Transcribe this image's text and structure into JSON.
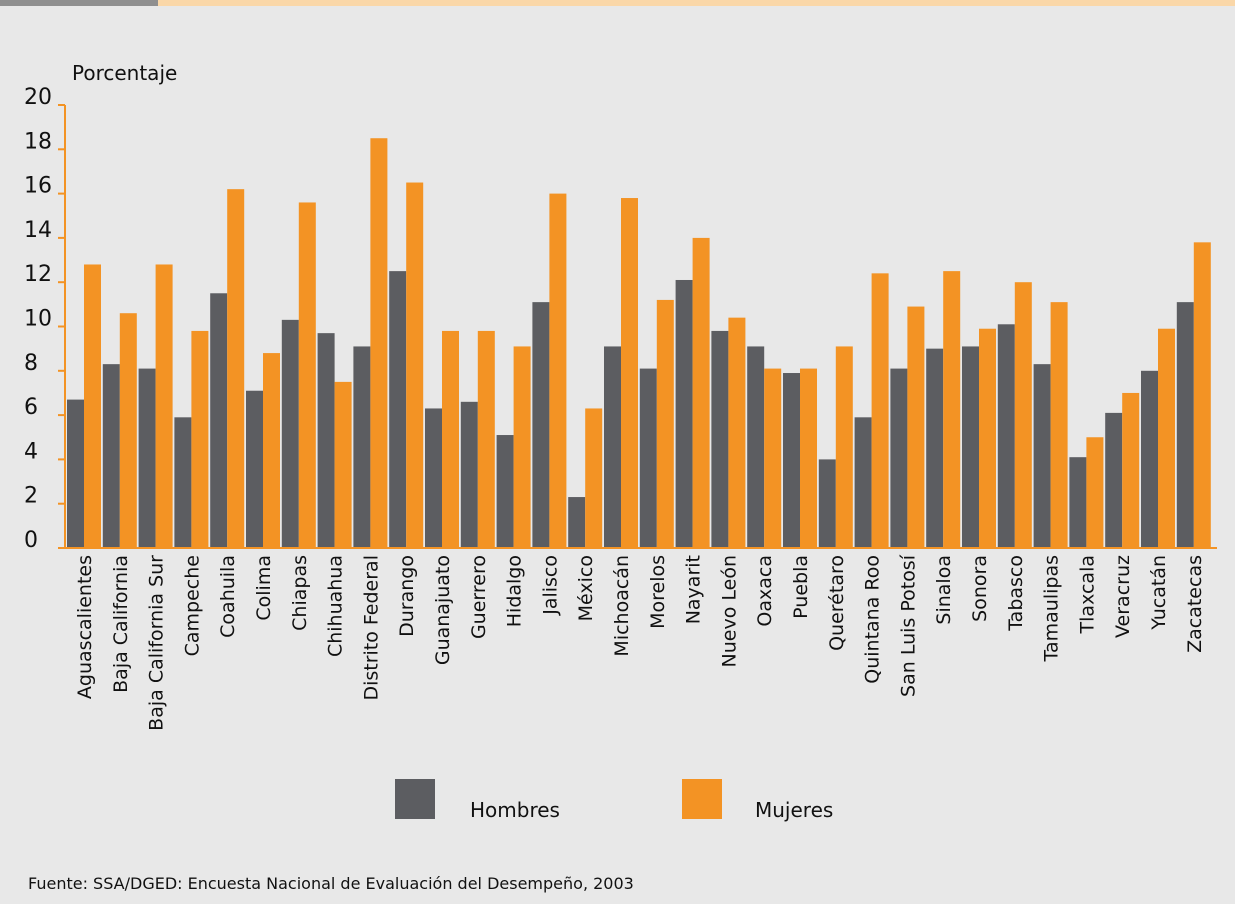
{
  "colors": {
    "hombres": "#5c5d61",
    "mujeres": "#f39324",
    "background": "#e8e8e8",
    "axis": "#f39324"
  },
  "chart_data": {
    "type": "bar",
    "title": "",
    "ylabel": "Porcentaje",
    "xlabel": "",
    "ylim": [
      0,
      20
    ],
    "yticks": [
      0,
      2,
      4,
      6,
      8,
      10,
      12,
      14,
      16,
      18,
      20
    ],
    "grid": false,
    "legend_position": "bottom",
    "categories": [
      "Aguascalientes",
      "Baja California",
      "Baja California Sur",
      "Campeche",
      "Coahuila",
      "Colima",
      "Chiapas",
      "Chihuahua",
      "Distrito Federal",
      "Durango",
      "Guanajuato",
      "Guerrero",
      "Hidalgo",
      "Jalisco",
      "México",
      "Michoacán",
      "Morelos",
      "Nayarit",
      "Nuevo León",
      "Oaxaca",
      "Puebla",
      "Querétaro",
      "Quintana Roo",
      "San Luis Potosí",
      "Sinaloa",
      "Sonora",
      "Tabasco",
      "Tamaulipas",
      "Tlaxcala",
      "Veracruz",
      "Yucatán",
      "Zacatecas"
    ],
    "series": [
      {
        "name": "Hombres",
        "values": [
          6.7,
          8.3,
          8.1,
          5.9,
          11.5,
          7.1,
          10.3,
          9.7,
          9.1,
          12.5,
          6.3,
          6.6,
          5.1,
          11.1,
          2.3,
          9.1,
          8.1,
          12.1,
          9.8,
          9.1,
          7.9,
          4.0,
          5.9,
          8.1,
          9.0,
          9.1,
          10.1,
          8.3,
          4.1,
          6.1,
          8.0,
          11.1
        ]
      },
      {
        "name": "Mujeres",
        "values": [
          12.8,
          10.6,
          12.8,
          9.8,
          16.2,
          8.8,
          15.6,
          7.5,
          18.5,
          16.5,
          9.8,
          9.8,
          9.1,
          16.0,
          6.3,
          15.8,
          11.2,
          14.0,
          10.4,
          8.1,
          8.1,
          9.1,
          12.4,
          10.9,
          12.5,
          9.9,
          12.0,
          11.1,
          5.0,
          7.0,
          9.9,
          13.8
        ]
      }
    ]
  },
  "legend": {
    "hombres_label": "Hombres",
    "mujeres_label": "Mujeres"
  },
  "footer": {
    "source": "Fuente: SSA/DGED: Encuesta Nacional de Evaluación del Desempeño, 2003"
  }
}
